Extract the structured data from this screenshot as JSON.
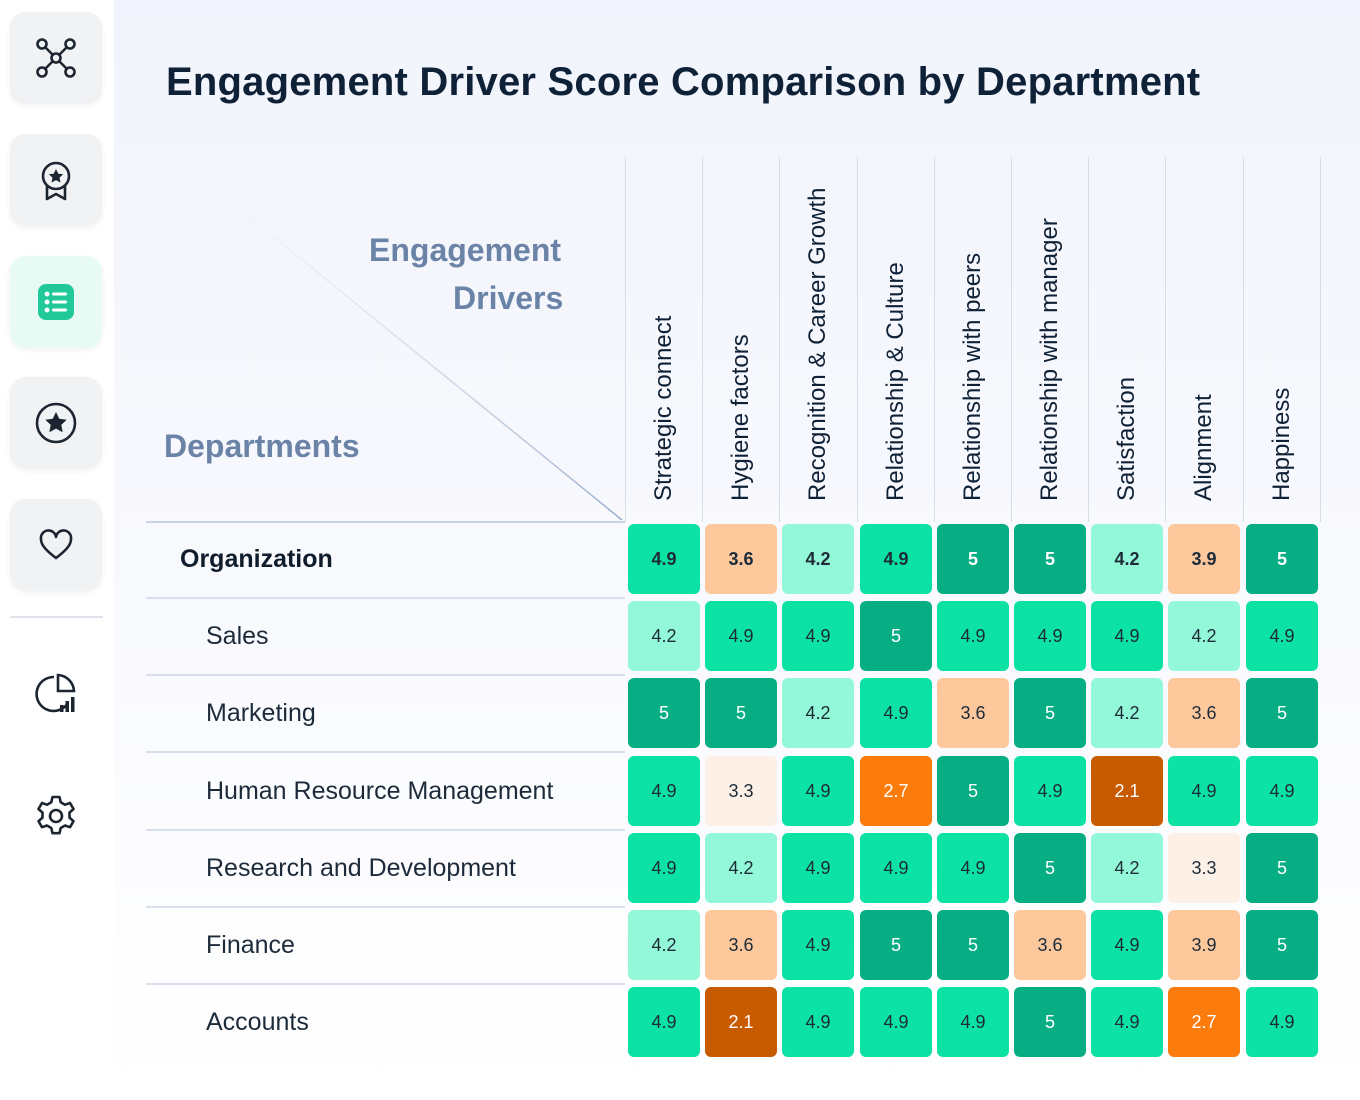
{
  "sidebar": {
    "items": [
      {
        "name": "network-icon",
        "active": false
      },
      {
        "name": "award-icon",
        "active": false
      },
      {
        "name": "list-icon",
        "active": true
      },
      {
        "name": "star-icon",
        "active": false
      },
      {
        "name": "heart-icon",
        "active": false
      }
    ],
    "bottom_items": [
      {
        "name": "analytics-icon"
      },
      {
        "name": "settings-icon"
      }
    ]
  },
  "header": {
    "title": "Engagement Driver Score Comparison by Department"
  },
  "colors": {
    "accent": "#20c997",
    "scale": {
      "2.1": "#c85a00",
      "2.7": "#fb7b0d",
      "3.3": "#fdf0e6",
      "3.6": "#fcc89c",
      "3.9": "#fcc89c",
      "4.2": "#93f8d8",
      "4.9": "#0de2a5",
      "5": "#07ae84"
    }
  },
  "chart_data": {
    "type": "heatmap",
    "title": "Engagement Driver Score Comparison by Department",
    "xlabel_lines": [
      "Engagement",
      "Drivers"
    ],
    "ylabel": "Departments",
    "columns": [
      "Strategic connect",
      "Hygiene factors",
      "Recognition & Career Growth",
      "Relationship & Culture",
      "Relationship with peers",
      "Relationship with manager",
      "Satisfaction",
      "Alignment",
      "Happiness"
    ],
    "rows": [
      {
        "label": "Organization",
        "values": [
          4.9,
          3.6,
          4.2,
          4.9,
          5,
          5,
          4.2,
          3.9,
          5
        ]
      },
      {
        "label": "Sales",
        "values": [
          4.2,
          4.9,
          4.9,
          5,
          4.9,
          4.9,
          4.9,
          4.2,
          4.9
        ]
      },
      {
        "label": "Marketing",
        "values": [
          5,
          5,
          4.2,
          4.9,
          3.6,
          5,
          4.2,
          3.6,
          5
        ]
      },
      {
        "label": "Human Resource Management",
        "values": [
          4.9,
          3.3,
          4.9,
          2.7,
          5,
          4.9,
          2.1,
          4.9,
          4.9
        ]
      },
      {
        "label": "Research and Development",
        "values": [
          4.9,
          4.2,
          4.9,
          4.9,
          4.9,
          5,
          4.2,
          3.3,
          5
        ]
      },
      {
        "label": "Finance",
        "values": [
          4.2,
          3.6,
          4.9,
          5,
          5,
          3.6,
          4.9,
          3.9,
          5
        ]
      },
      {
        "label": "Accounts",
        "values": [
          4.9,
          2.1,
          4.9,
          4.9,
          4.9,
          5,
          4.9,
          2.7,
          4.9
        ]
      }
    ]
  }
}
